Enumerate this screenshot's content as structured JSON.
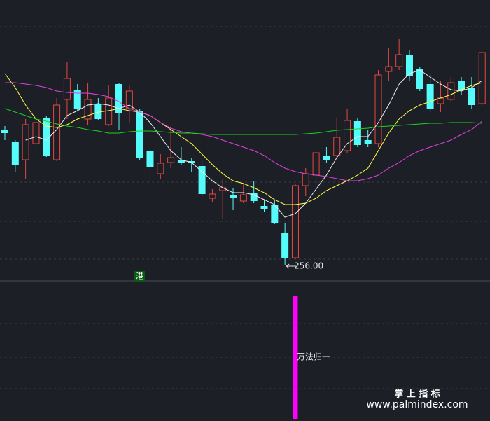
{
  "chart_data": {
    "type": "candlestick",
    "up_color": "#e8473f",
    "down_color": "#54fcfc",
    "background": "#1c1f26",
    "ylim": [
      253.8,
      293.8
    ],
    "open": [
      275.3,
      273.5,
      271.0,
      273.3,
      277.0,
      271.0,
      279.6,
      281.0,
      276.8,
      279.0,
      276.0,
      281.8,
      278.3,
      278.0,
      272.3,
      269.0,
      270.6,
      271.0,
      270.8,
      270.1,
      265.5,
      266.6,
      265.9,
      265.1,
      266.3,
      264.4,
      264.5,
      260.5,
      257.0,
      267.3,
      268.8,
      271.6,
      271.6,
      272.3,
      276.5,
      273.8,
      273.3,
      283.6,
      284.3,
      286.0,
      284.0,
      281.8,
      279.0,
      279.6,
      282.3,
      281.3,
      279.0
    ],
    "high": [
      275.8,
      273.8,
      276.8,
      277.0,
      277.3,
      279.8,
      285.0,
      281.8,
      282.0,
      279.8,
      281.6,
      282.0,
      281.6,
      278.3,
      272.8,
      271.8,
      275.6,
      272.8,
      271.3,
      271.0,
      266.8,
      268.3,
      267.0,
      267.6,
      268.0,
      265.3,
      265.3,
      262.0,
      267.6,
      269.8,
      272.3,
      272.8,
      277.0,
      278.3,
      277.0,
      275.3,
      283.8,
      287.0,
      288.3,
      286.6,
      284.3,
      283.3,
      282.3,
      282.8,
      282.8,
      282.8,
      286.3
    ],
    "low": [
      273.8,
      269.3,
      268.3,
      272.6,
      271.4,
      270.8,
      276.8,
      278.0,
      276.0,
      276.6,
      275.8,
      275.3,
      276.3,
      271.0,
      267.3,
      268.3,
      269.8,
      270.2,
      269.3,
      265.8,
      265.0,
      262.6,
      263.8,
      264.8,
      264.8,
      263.6,
      261.8,
      256.0,
      256.8,
      265.8,
      267.6,
      270.6,
      271.3,
      272.0,
      272.8,
      272.8,
      272.8,
      282.3,
      283.8,
      282.3,
      280.8,
      277.8,
      277.8,
      279.3,
      280.3,
      278.3,
      278.8
    ],
    "close": [
      274.8,
      270.3,
      276.0,
      276.3,
      271.6,
      278.8,
      282.6,
      278.3,
      279.6,
      276.8,
      279.8,
      277.6,
      280.8,
      271.3,
      270.0,
      270.5,
      271.3,
      270.6,
      270.5,
      266.1,
      266.1,
      267.0,
      265.6,
      266.0,
      265.1,
      264.0,
      262.0,
      257.0,
      267.3,
      269.0,
      272.0,
      271.0,
      274.2,
      276.6,
      273.1,
      273.2,
      283.1,
      284.3,
      286.0,
      283.0,
      281.1,
      278.3,
      279.8,
      282.0,
      281.0,
      278.8,
      286.3
    ],
    "ma_lines": [
      {
        "color": "#f0f0f0",
        "values": [
          null,
          null,
          273.8,
          274.3,
          273.8,
          275.3,
          277.3,
          278.0,
          278.8,
          279.0,
          278.8,
          278.3,
          278.8,
          277.8,
          276.3,
          274.3,
          272.3,
          271.0,
          270.6,
          269.3,
          268.0,
          267.0,
          266.3,
          266.3,
          266.0,
          265.3,
          264.6,
          262.8,
          263.3,
          264.8,
          266.8,
          268.8,
          271.3,
          273.3,
          274.3,
          274.3,
          276.3,
          278.8,
          281.8,
          283.3,
          283.8,
          282.8,
          281.8,
          281.0,
          280.8,
          281.3,
          282.3
        ]
      },
      {
        "color": "#ffff4a",
        "values": [
          283.3,
          281.3,
          278.8,
          276.8,
          275.8,
          275.6,
          276.0,
          276.8,
          277.3,
          277.8,
          278.0,
          278.3,
          278.0,
          277.8,
          277.3,
          276.3,
          275.3,
          274.3,
          273.3,
          271.8,
          270.3,
          269.0,
          268.0,
          267.6,
          267.0,
          266.3,
          265.3,
          264.6,
          264.6,
          264.8,
          265.5,
          266.6,
          267.3,
          268.0,
          268.8,
          269.8,
          272.3,
          274.8,
          276.8,
          278.0,
          278.8,
          279.3,
          279.8,
          280.3,
          281.0,
          281.6,
          282.0
        ]
      },
      {
        "color": "#e040e0",
        "values": [
          282.0,
          282.0,
          281.8,
          281.6,
          281.3,
          280.8,
          280.6,
          280.5,
          280.5,
          280.3,
          280.0,
          279.3,
          278.3,
          277.8,
          277.3,
          276.3,
          275.5,
          275.0,
          274.8,
          274.6,
          274.3,
          273.8,
          273.3,
          272.8,
          272.3,
          271.6,
          270.6,
          269.8,
          269.3,
          269.0,
          268.8,
          268.6,
          268.3,
          268.0,
          268.0,
          268.3,
          268.8,
          269.8,
          270.6,
          271.6,
          272.3,
          272.8,
          273.3,
          273.8,
          274.6,
          275.3,
          276.5
        ]
      },
      {
        "color": "#1fd01f",
        "values": [
          278.3,
          277.8,
          277.3,
          276.8,
          276.5,
          276.1,
          275.8,
          275.6,
          275.3,
          275.1,
          274.8,
          274.8,
          275.0,
          275.1,
          275.1,
          275.0,
          274.9,
          274.8,
          274.8,
          274.7,
          274.6,
          274.6,
          274.6,
          274.6,
          274.6,
          274.6,
          274.6,
          274.6,
          274.6,
          274.7,
          274.8,
          275.0,
          275.2,
          275.3,
          275.4,
          275.5,
          275.7,
          275.8,
          275.9,
          276.0,
          276.1,
          276.2,
          276.2,
          276.3,
          276.3,
          276.3,
          276.2
        ]
      }
    ],
    "low_annotation": {
      "value": 256.0,
      "label": "256.00"
    },
    "market_tag": "港",
    "indicator": {
      "name": "万法归一",
      "color": "#ff00ff",
      "ylim": [
        0,
        1
      ],
      "values": [
        0,
        0,
        0,
        0,
        0,
        0,
        0,
        0,
        0,
        0,
        0,
        0,
        0,
        0,
        0,
        0,
        0,
        0,
        0,
        0,
        0,
        0,
        0,
        0,
        0,
        0,
        0,
        0,
        1,
        0,
        0,
        0,
        0,
        0,
        0,
        0,
        0,
        0,
        0,
        0,
        0,
        0,
        0,
        0,
        0,
        0,
        0
      ]
    }
  },
  "watermark": {
    "title": "掌 上 指 标",
    "url": "www.palmindex.com"
  }
}
